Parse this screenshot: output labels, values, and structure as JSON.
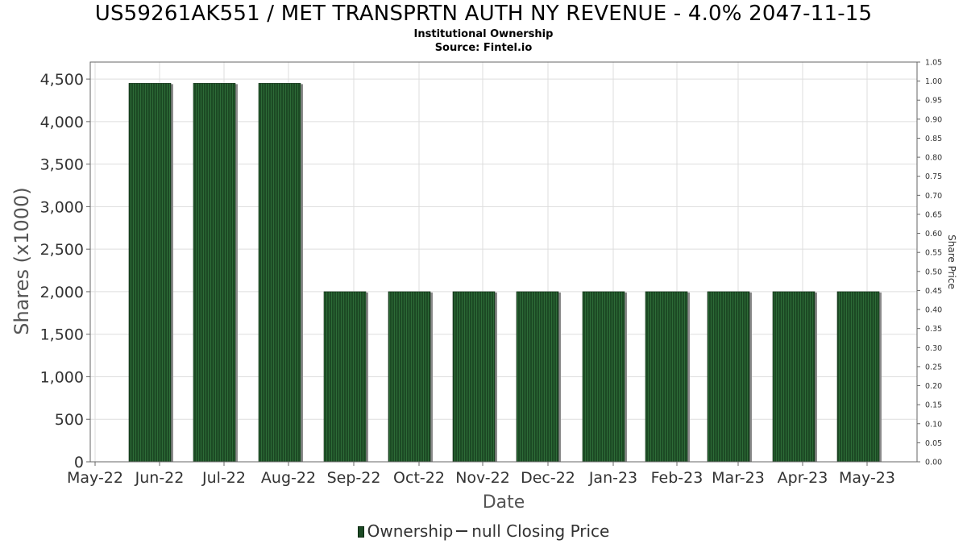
{
  "title": "US59261AK551 / MET TRANSPRTN AUTH NY REVENUE - 4.0% 2047-11-15",
  "subtitle": "Institutional Ownership",
  "source": "Source: Fintel.io",
  "legend": {
    "ownership_label": "Ownership",
    "price_label": "null Closing Price"
  },
  "colors": {
    "bar": "#1c4a24",
    "bar_stripe": "#2d6b37",
    "bar_shadow": "#8a8a8a",
    "grid": "#dddddd",
    "axis": "#666666"
  },
  "chart_data": {
    "type": "bar",
    "title": "US59261AK551 / MET TRANSPRTN AUTH NY REVENUE - 4.0% 2047-11-15",
    "xlabel": "Date",
    "ylabel": "Shares (x1000)",
    "y2label": "Share Price",
    "x_tick_labels": [
      "May-22",
      "Jun-22",
      "Jul-22",
      "Aug-22",
      "Sep-22",
      "Oct-22",
      "Nov-22",
      "Dec-22",
      "Jan-23",
      "Feb-23",
      "Mar-23",
      "Apr-23",
      "May-23"
    ],
    "categories": [
      "Jun-22",
      "Jul-22",
      "Aug-22",
      "Sep-22",
      "Oct-22",
      "Nov-22",
      "Dec-22",
      "Jan-23",
      "Feb-23",
      "Mar-23",
      "Apr-23",
      "May-23"
    ],
    "series": [
      {
        "name": "Ownership",
        "values": [
          4450,
          4450,
          4450,
          2000,
          2000,
          2000,
          2000,
          2000,
          2000,
          2000,
          2000,
          2000
        ]
      }
    ],
    "ylim": [
      0,
      4700
    ],
    "y_ticks": [
      0,
      500,
      1000,
      1500,
      2000,
      2500,
      3000,
      3500,
      4000,
      4500
    ],
    "y_tick_labels": [
      "0",
      "500",
      "1,000",
      "1,500",
      "2,000",
      "2,500",
      "3,000",
      "3,500",
      "4,000",
      "4,500"
    ],
    "y2lim": [
      0,
      1.05
    ],
    "y2_ticks": [
      0,
      0.05,
      0.1,
      0.15,
      0.2,
      0.25,
      0.3,
      0.35,
      0.4,
      0.45,
      0.5,
      0.55,
      0.6,
      0.65,
      0.7,
      0.75,
      0.8,
      0.85,
      0.9,
      0.95,
      1.0,
      1.05
    ],
    "y2_tick_labels": [
      "0.00",
      "0.05",
      "0.10",
      "0.15",
      "0.20",
      "0.25",
      "0.30",
      "0.35",
      "0.40",
      "0.45",
      "0.50",
      "0.55",
      "0.60",
      "0.65",
      "0.70",
      "0.75",
      "0.80",
      "0.85",
      "0.90",
      "0.95",
      "1.00",
      "1.05"
    ],
    "grid": true,
    "legend_position": "bottom"
  }
}
